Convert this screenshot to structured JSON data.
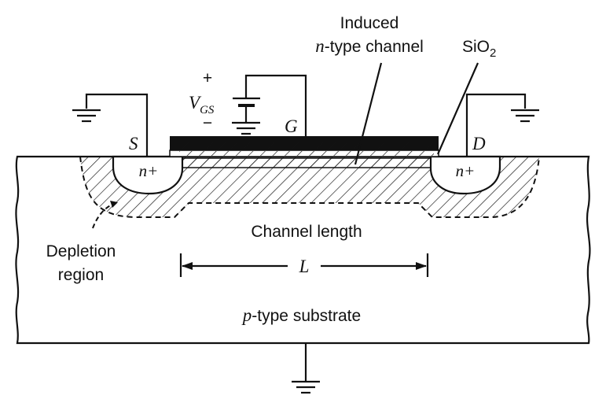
{
  "colors": {
    "ink": "#111111",
    "background": "#ffffff",
    "oxide": "#bdbdbd",
    "gate_metal": "#111111"
  },
  "labels": {
    "induced_line1": "Induced",
    "induced_italic": "n",
    "induced_rest": "-type channel",
    "sio2_main": "SiO",
    "sio2_sub": "2",
    "plus_sign": "+",
    "minus_sign": "−",
    "vgs_v": "V",
    "vgs_sub": "GS",
    "terminal_s": "S",
    "terminal_g": "G",
    "terminal_d": "D",
    "source_region": "n+",
    "drain_region": "n+",
    "channel_length": "Channel length",
    "length_symbol": "L",
    "depletion_line1": "Depletion",
    "depletion_line2": "region",
    "substrate_italic": "p",
    "substrate_rest": "-type substrate"
  },
  "icons": [
    "ground-icon",
    "battery-icon"
  ]
}
